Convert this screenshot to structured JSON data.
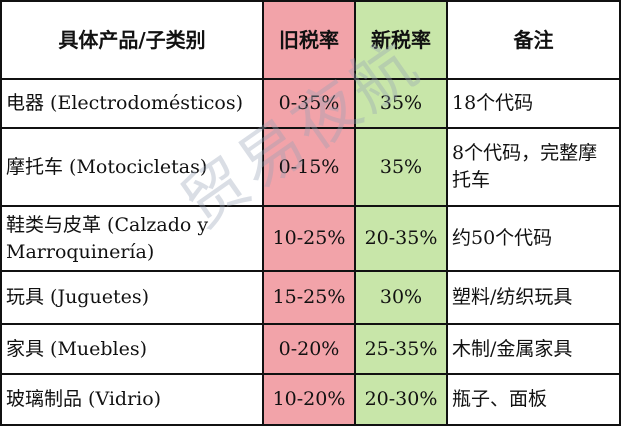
{
  "headers": [
    "具体产品/子类别",
    "旧税率",
    "新税率",
    "备注"
  ],
  "rows": [
    [
      "电器 (Electrodomésticos)",
      "0-35%",
      "35%",
      "18个代码"
    ],
    [
      "摩托车 (Motocicletas)",
      "0-15%",
      "35%",
      "8个代码，完整摩托车"
    ],
    [
      "鞋类与皮革 (Calzado y Marroquinería)",
      "10-25%",
      "20-35%",
      "约50个代码"
    ],
    [
      "玩具 (Juguetes)",
      "15-25%",
      "30%",
      "塑料/纺织玩具"
    ],
    [
      "家具 (Muebles)",
      "0-20%",
      "25-35%",
      "木制/金属家具"
    ],
    [
      "玻璃制品 (Vidrio)",
      "10-20%",
      "20-30%",
      "瓶子、面板"
    ]
  ],
  "watermark": "贸易夜航",
  "colors": {
    "old_rate_column": "#f2a3a9",
    "new_rate_column": "#c8e6a9"
  }
}
